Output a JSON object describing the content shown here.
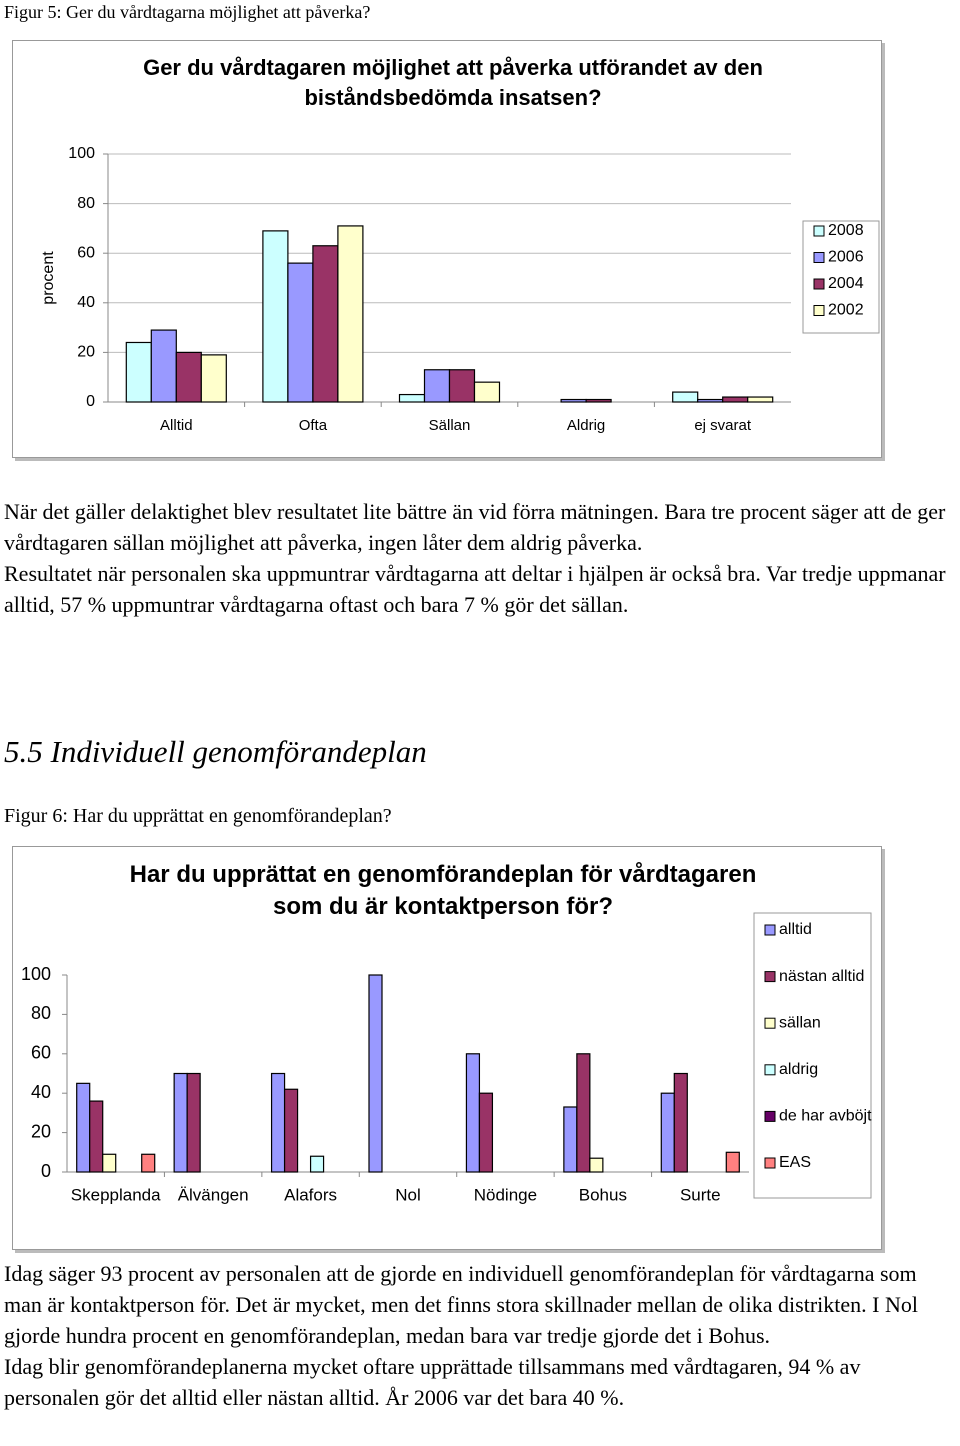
{
  "figure5_caption": "Figur 5: Ger du vårdtagarna möjlighet att påverka?",
  "chart_data": [
    {
      "type": "bar",
      "title": "Ger du vårdtagaren möjlighet att påverka utförandet av den biståndsbedömda insatsen?",
      "y_label": "procent",
      "categories": [
        "Alltid",
        "Ofta",
        "Sällan",
        "Aldrig",
        "ej svarat"
      ],
      "series": [
        {
          "name": "2008",
          "color": "#ccffff",
          "values": [
            24,
            69,
            3,
            0,
            4
          ]
        },
        {
          "name": "2006",
          "color": "#9999ff",
          "values": [
            29,
            56,
            13,
            1,
            1
          ]
        },
        {
          "name": "2004",
          "color": "#993366",
          "values": [
            20,
            63,
            13,
            1,
            2
          ]
        },
        {
          "name": "2002",
          "color": "#ffffcc",
          "values": [
            19,
            71,
            8,
            0,
            2
          ]
        }
      ],
      "ylim": [
        0,
        100
      ],
      "yticks": [
        0,
        20,
        40,
        60,
        80,
        100
      ],
      "grid": true,
      "legend": "right"
    },
    {
      "type": "bar",
      "title": "Har du upprättat en genomförandeplan för vårdtagaren som du är kontaktperson för?",
      "categories": [
        "Skepplanda",
        "Älvängen",
        "Alafors",
        "Nol",
        "Nödinge",
        "Bohus",
        "Surte"
      ],
      "series": [
        {
          "name": "alltid",
          "color": "#9999ff",
          "values": [
            45,
            50,
            50,
            100,
            60,
            33,
            40
          ]
        },
        {
          "name": "nästan alltid",
          "color": "#993366",
          "values": [
            36,
            50,
            42,
            0,
            40,
            60,
            50
          ]
        },
        {
          "name": "sällan",
          "color": "#ffffcc",
          "values": [
            9,
            0,
            0,
            0,
            0,
            7,
            0
          ]
        },
        {
          "name": "aldrig",
          "color": "#ccffff",
          "values": [
            0,
            0,
            8,
            0,
            0,
            0,
            0
          ]
        },
        {
          "name": "de har avböjt",
          "color": "#660066",
          "values": [
            0,
            0,
            0,
            0,
            0,
            0,
            0
          ]
        },
        {
          "name": "EAS",
          "color": "#ff8080",
          "values": [
            9,
            0,
            0,
            0,
            0,
            0,
            10
          ]
        }
      ],
      "ylim": [
        0,
        100
      ],
      "yticks": [
        0,
        20,
        40,
        60,
        80,
        100
      ],
      "grid": false,
      "legend": "right"
    }
  ],
  "paragraphs1": [
    "När det gäller delaktighet blev resultatet lite bättre än vid förra mätningen. Bara tre procent säger att de ger vårdtagaren sällan möjlighet att påverka, ingen låter dem aldrig påverka.",
    "Resultatet när personalen ska uppmuntrar vårdtagarna att deltar i hjälpen är också bra. Var tredje uppmanar alltid, 57 % uppmuntrar vårdtagarna oftast och bara 7 % gör det sällan."
  ],
  "heading": "5.5 Individuell genomförandeplan",
  "figure6_caption": "Figur 6: Har du upprättat en genomförandeplan?",
  "paragraphs2": [
    "Idag säger 93 procent av personalen att de gjorde en individuell genomförandeplan för vårdtagarna som man är kontaktperson för. Det är mycket, men det finns stora skillnader mellan de olika distrikten. I Nol gjorde hundra procent en genomförandeplan, medan bara var tredje gjorde det i Bohus.",
    "Idag blir genomförandeplanerna mycket oftare upprättade tillsammans med vårdtagaren, 94 % av personalen gör det alltid eller nästan alltid. År 2006 var det bara 40 %."
  ]
}
